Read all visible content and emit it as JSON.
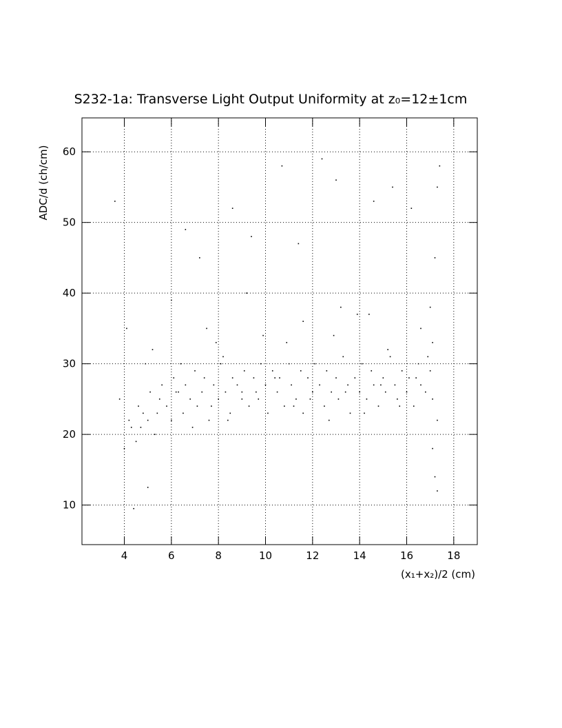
{
  "chart_data": {
    "type": "scatter",
    "title": "S232-1a: Transverse Light Output Uniformity at z₀=12±1cm",
    "x_label": "(x₁+x₂)/2 (cm)",
    "y_label": "ADC/d (ch/cm)",
    "xlim": [
      2.2,
      19
    ],
    "ylim": [
      4.4,
      64.8
    ],
    "xticks": [
      4,
      6,
      8,
      10,
      12,
      14,
      16,
      18
    ],
    "yticks": [
      10,
      20,
      30,
      40,
      50,
      60
    ],
    "grid": true,
    "color": "#000000",
    "x": [
      3.8,
      4.0,
      4.2,
      4.3,
      4.5,
      4.6,
      4.8,
      5.0,
      5.1,
      5.3,
      5.5,
      5.6,
      5.8,
      6.0,
      6.1,
      6.3,
      6.5,
      6.6,
      6.8,
      7.0,
      7.1,
      7.3,
      7.4,
      7.6,
      7.8,
      8.0,
      8.1,
      8.3,
      8.5,
      8.6,
      8.8,
      9.0,
      9.1,
      9.3,
      9.5,
      9.6,
      9.8,
      10.0,
      10.1,
      10.3,
      10.5,
      10.6,
      10.8,
      11.0,
      11.1,
      11.3,
      11.5,
      11.6,
      11.8,
      12.0,
      12.1,
      12.3,
      12.5,
      12.6,
      12.8,
      13.0,
      13.1,
      13.3,
      13.5,
      13.6,
      13.8,
      14.0,
      14.1,
      14.3,
      14.5,
      14.6,
      14.8,
      15.0,
      15.1,
      15.3,
      15.5,
      15.6,
      15.8,
      16.0,
      16.1,
      16.3,
      16.5,
      16.6,
      16.8,
      17.0,
      17.1,
      17.2,
      17.3,
      17.4,
      17.1,
      17.2,
      17.3,
      17.0,
      16.9,
      17.3,
      3.6,
      4.1,
      4.4,
      5.0,
      6.6,
      7.2,
      8.6,
      9.4,
      10.7,
      12.4,
      13.0,
      14.6,
      15.4,
      16.2,
      4.9,
      6.0,
      7.5,
      9.2,
      11.4,
      13.9,
      4.7,
      5.4,
      6.2,
      6.9,
      7.7,
      8.4,
      9.0,
      9.7,
      10.4,
      11.2,
      11.9,
      12.7,
      13.4,
      14.2,
      14.9,
      15.7,
      16.4,
      17.1,
      8.2,
      10.9,
      11.6,
      12.9,
      14.4,
      15.2,
      16.6,
      5.2,
      6.4,
      7.9,
      9.9,
      13.2
    ],
    "y": [
      25,
      18,
      22,
      21,
      19,
      24,
      23,
      22,
      26,
      20,
      25,
      27,
      24,
      22,
      28,
      26,
      23,
      27,
      25,
      29,
      24,
      26,
      28,
      22,
      27,
      25,
      30,
      26,
      23,
      28,
      27,
      25,
      29,
      24,
      28,
      26,
      30,
      27,
      23,
      29,
      26,
      28,
      24,
      30,
      27,
      25,
      29,
      23,
      28,
      26,
      30,
      27,
      24,
      29,
      26,
      28,
      25,
      31,
      27,
      23,
      28,
      26,
      30,
      25,
      29,
      27,
      24,
      28,
      26,
      31,
      27,
      25,
      29,
      26,
      28,
      24,
      30,
      27,
      26,
      29,
      33,
      45,
      55,
      58,
      18,
      14,
      12,
      38,
      31,
      22,
      53,
      35,
      9.5,
      12.5,
      49,
      45,
      52,
      48,
      58,
      59,
      56,
      53,
      55,
      52,
      30,
      39,
      35,
      40,
      47,
      37,
      21,
      23,
      26,
      21,
      24,
      22,
      26,
      25,
      28,
      24,
      25,
      22,
      26,
      23,
      27,
      24,
      28,
      25,
      31,
      33,
      36,
      34,
      37,
      32,
      35,
      32,
      30,
      33,
      34,
      38
    ]
  }
}
